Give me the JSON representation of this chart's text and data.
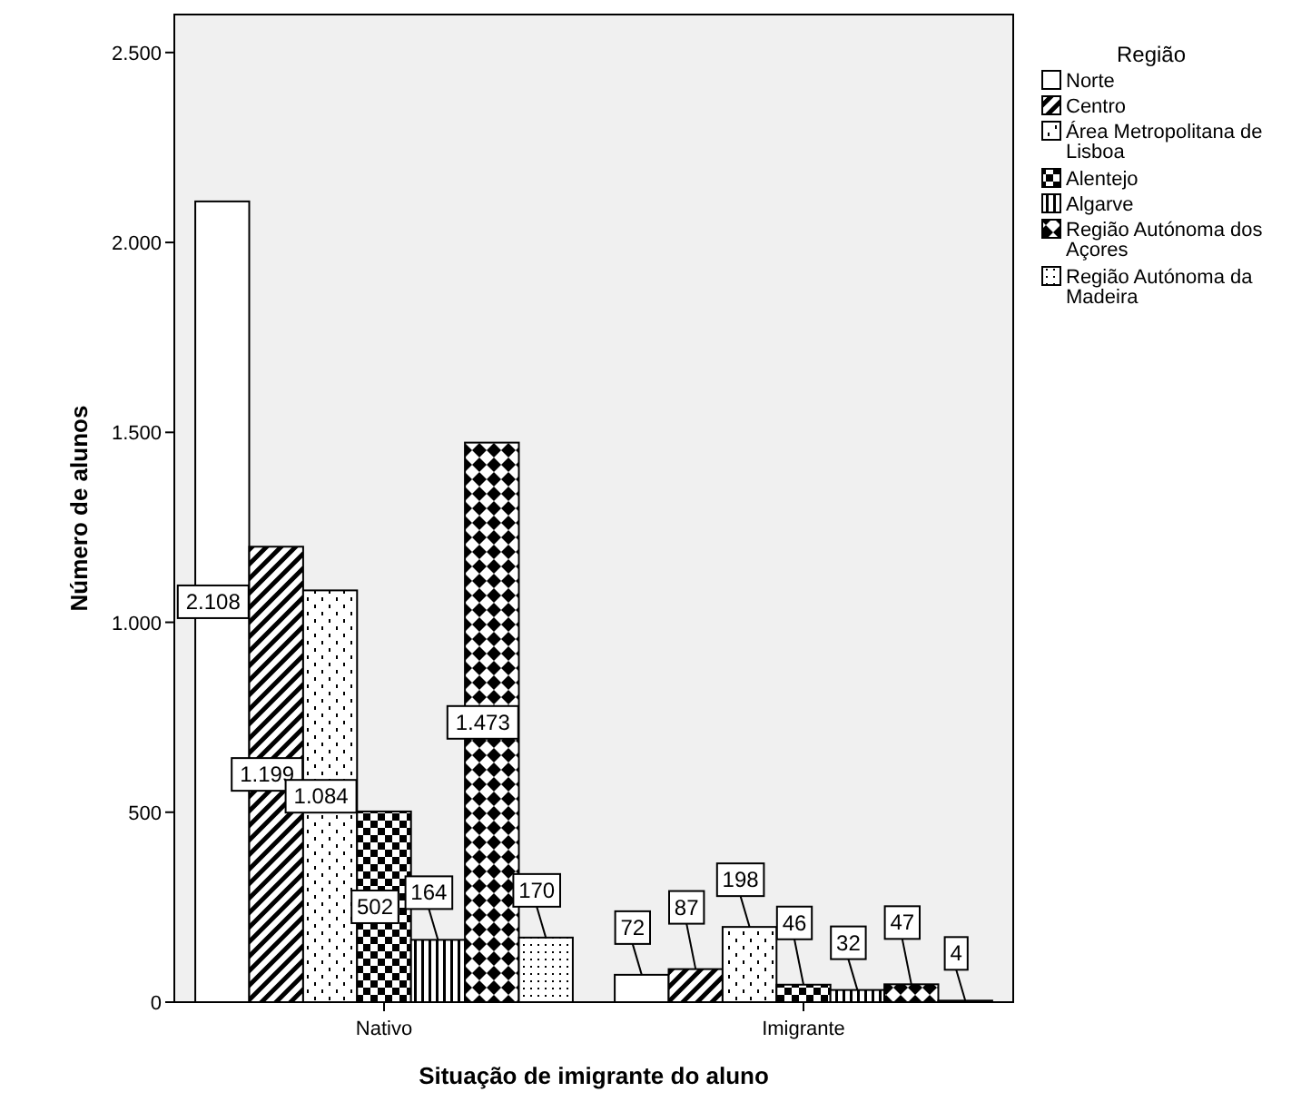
{
  "chart_data": {
    "type": "bar",
    "xlabel": "Situação de imigrante do aluno",
    "ylabel": "Número de alunos",
    "legend_title": "Região",
    "legend": "right",
    "categories": [
      "Nativo",
      "Imigrante"
    ],
    "ylim": [
      0,
      2600
    ],
    "yticks": [
      {
        "value": 0,
        "label": "0"
      },
      {
        "value": 500,
        "label": "500"
      },
      {
        "value": 1000,
        "label": "1.000"
      },
      {
        "value": 1500,
        "label": "1.500"
      },
      {
        "value": 2000,
        "label": "2.000"
      },
      {
        "value": 2500,
        "label": "2.500"
      }
    ],
    "series": [
      {
        "name": "Norte",
        "color": "#ffffff",
        "values": [
          2108,
          72
        ],
        "value_labels": [
          "2.108",
          "72"
        ]
      },
      {
        "name": "Centro",
        "color": "#000000",
        "values": [
          1199,
          87
        ],
        "value_labels": [
          "1.199",
          "87"
        ]
      },
      {
        "name": "Área Metropolitana de Lisboa",
        "color": "#000000",
        "values": [
          1084,
          198
        ],
        "value_labels": [
          "1.084",
          "198"
        ]
      },
      {
        "name": "Alentejo",
        "color": "#000000",
        "values": [
          502,
          46
        ],
        "value_labels": [
          "502",
          "46"
        ]
      },
      {
        "name": "Algarve",
        "color": "#000000",
        "values": [
          164,
          32
        ],
        "value_labels": [
          "164",
          "32"
        ]
      },
      {
        "name": "Região Autónoma dos Açores",
        "color": "#000000",
        "values": [
          1473,
          47
        ],
        "value_labels": [
          "1.473",
          "47"
        ]
      },
      {
        "name": "Região Autónoma da Madeira",
        "color": "#000000",
        "values": [
          170,
          4
        ],
        "value_labels": [
          "170",
          "4"
        ]
      }
    ]
  }
}
